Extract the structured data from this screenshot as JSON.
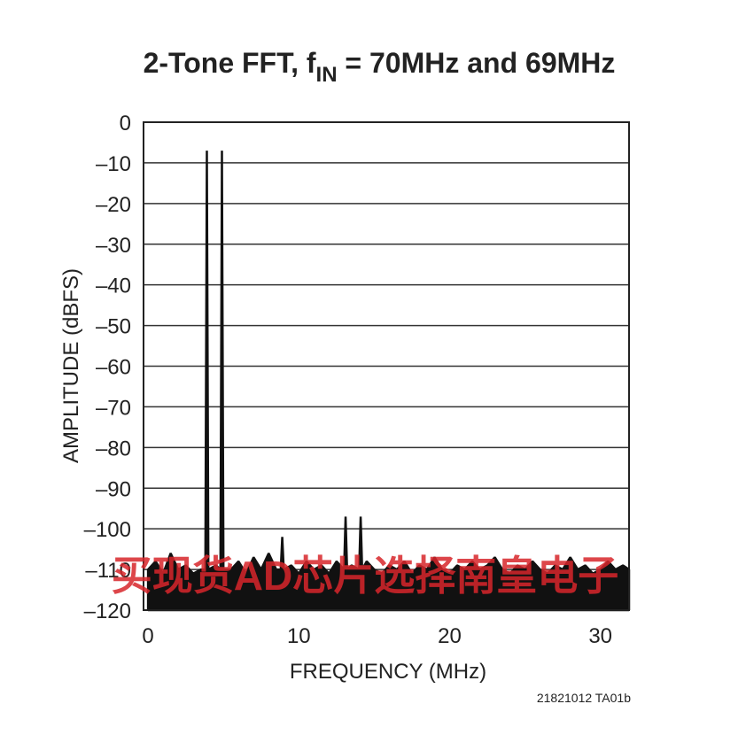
{
  "chart_data": {
    "type": "area",
    "title": "2-Tone FFT, f",
    "title_subscript": "IN",
    "title_rest": " = 70MHz and 69MHz",
    "x_label": "FREQUENCY (MHz)",
    "y_label": "AMPLITUDE (dBFS)",
    "figure_code": "21821012 TA01b",
    "watermark": "买现货AD芯片选择南皇电子",
    "color": "#111111",
    "grid": true,
    "xlim": [
      -0.3,
      31.9
    ],
    "xticks": [
      0,
      10,
      20,
      30
    ],
    "ylim": [
      -120,
      0
    ],
    "yticks": [
      0,
      {
        "value": -10,
        "label": "–10"
      },
      {
        "value": -20,
        "label": "–20"
      },
      {
        "value": -30,
        "label": "–30"
      },
      {
        "value": -40,
        "label": "–40"
      },
      {
        "value": -50,
        "label": "–50"
      },
      {
        "value": -60,
        "label": "–60"
      },
      {
        "value": -70,
        "label": "–70"
      },
      {
        "value": -80,
        "label": "–80"
      },
      {
        "value": -90,
        "label": "–90"
      },
      {
        "value": -100,
        "label": "–100"
      },
      {
        "value": -110,
        "label": "–110"
      },
      {
        "value": -120,
        "label": "–120"
      }
    ],
    "x": [
      0,
      0.5,
      1,
      1.5,
      2,
      2.5,
      3,
      3.5,
      3.8,
      3.9,
      4,
      4.5,
      4.8,
      4.9,
      5,
      5.5,
      6,
      6.5,
      7,
      7.5,
      8,
      8.5,
      8.8,
      8.9,
      9,
      9.5,
      10,
      10.5,
      11,
      11.5,
      12,
      12.5,
      13,
      13.1,
      13.2,
      13.5,
      14,
      14.1,
      14.2,
      14.5,
      15,
      15.5,
      16,
      16.5,
      17,
      17.5,
      18,
      18.5,
      19,
      19.5,
      20,
      20.5,
      21,
      21.5,
      22,
      22.5,
      23,
      23.5,
      24,
      24.5,
      25,
      25.5,
      26,
      26.5,
      27,
      27.5,
      28,
      28.5,
      29,
      29.5,
      30,
      30.5,
      31,
      31.5,
      31.9
    ],
    "values": [
      -110,
      -108,
      -111,
      -106,
      -110,
      -109,
      -111,
      -110,
      -110,
      -7,
      -110,
      -109,
      -110,
      -7,
      -110,
      -110,
      -108,
      -111,
      -107,
      -110,
      -106,
      -110,
      -110,
      -102,
      -110,
      -109,
      -111,
      -108,
      -110,
      -109,
      -111,
      -108,
      -110,
      -97,
      -110,
      -109,
      -110,
      -97,
      -110,
      -108,
      -110,
      -111,
      -109,
      -110,
      -108,
      -111,
      -109,
      -110,
      -107,
      -110,
      -111,
      -109,
      -110,
      -108,
      -110,
      -109,
      -107,
      -110,
      -111,
      -109,
      -110,
      -108,
      -110,
      -111,
      -109,
      -110,
      -107,
      -110,
      -109,
      -111,
      -110,
      -108,
      -110,
      -109,
      -110
    ]
  }
}
